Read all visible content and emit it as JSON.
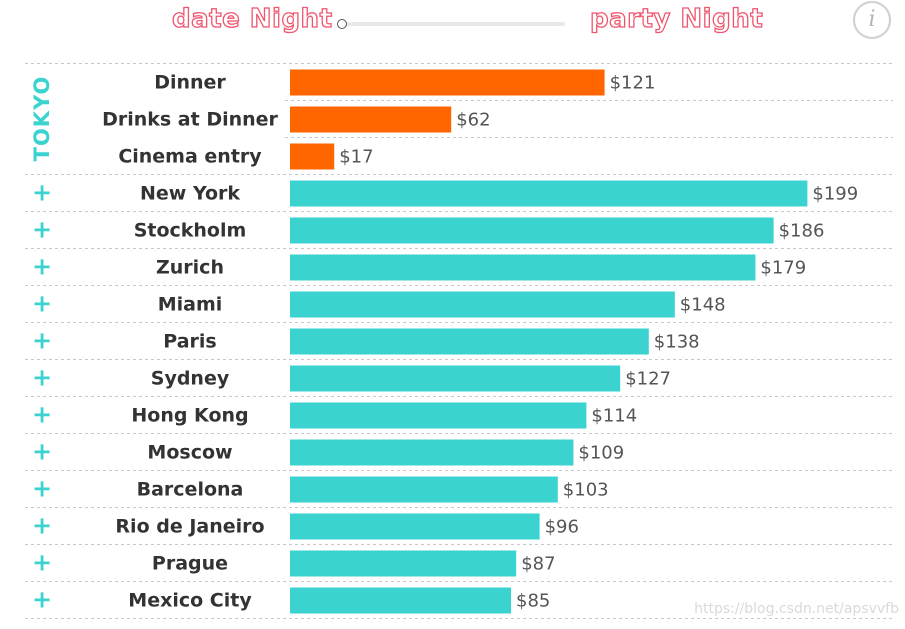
{
  "header": {
    "left_label": "date Night",
    "right_label": "party Night",
    "info_symbol": "i",
    "info_icon": "info-icon"
  },
  "slider": {
    "value": 0
  },
  "chart_data": {
    "type": "bar",
    "orientation": "horizontal",
    "xlim": [
      0,
      210
    ],
    "grid": false,
    "value_prefix": "$",
    "colors": {
      "highlight": "#ff6600",
      "default": "#3ad3d0",
      "group_label": "#3ad3d0"
    },
    "highlight_group": {
      "label": "TOKYO",
      "categories": [
        "Dinner",
        "Drinks at Dinner",
        "Cinema entry"
      ],
      "values": [
        121,
        62,
        17
      ],
      "value_labels": [
        "$121",
        "$62",
        "$17"
      ]
    },
    "categories": [
      "New York",
      "Stockholm",
      "Zurich",
      "Miami",
      "Paris",
      "Sydney",
      "Hong Kong",
      "Moscow",
      "Barcelona",
      "Rio de Janeiro",
      "Prague",
      "Mexico City"
    ],
    "values": [
      199,
      186,
      179,
      148,
      138,
      127,
      114,
      109,
      103,
      96,
      87,
      85
    ],
    "value_labels": [
      "$199",
      "$186",
      "$179",
      "$148",
      "$138",
      "$127",
      "$114",
      "$109",
      "$103",
      "$96",
      "$87",
      "$85"
    ],
    "expand_symbol": "+",
    "expand_icon": "plus-icon"
  },
  "watermark": "https://blog.csdn.net/apsvvfb"
}
